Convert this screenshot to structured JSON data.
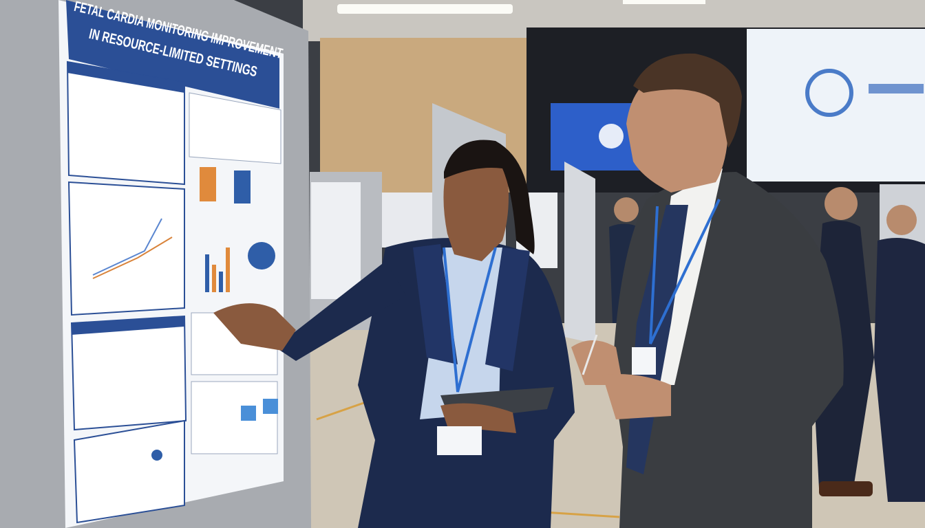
{
  "poster": {
    "title_lines": [
      "FETAL CARDIA MONITORING IMPROVEMENT",
      "IN RESOURCE-LIMITED SETTINGS"
    ]
  }
}
